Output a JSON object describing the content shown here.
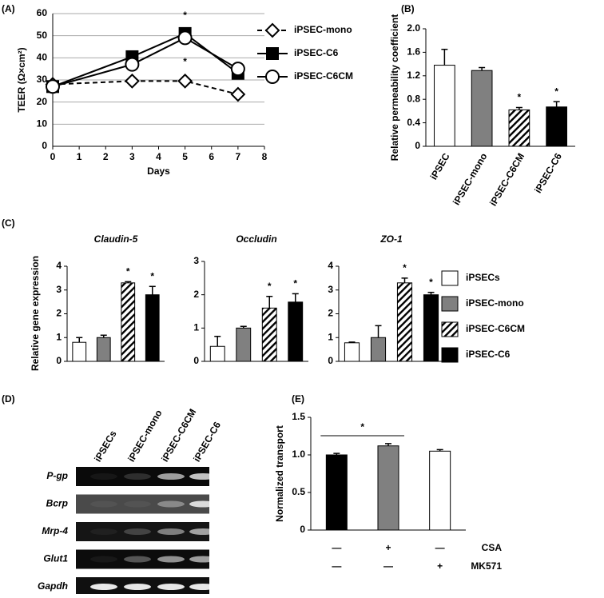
{
  "chart_data": [
    {
      "type": "line",
      "panel": "(A)",
      "ylabel": "TEER (Ω×cm²)",
      "xlabel": "Days",
      "x": [
        0,
        3,
        5,
        7
      ],
      "xlim": [
        0,
        8
      ],
      "xticks": [
        0,
        1,
        2,
        3,
        4,
        5,
        6,
        7,
        8
      ],
      "ylim": [
        0,
        60
      ],
      "yticks": [
        0,
        10,
        20,
        30,
        40,
        50,
        60
      ],
      "grid": true,
      "series": [
        {
          "name": "iPSEC-mono",
          "color": "#000000",
          "marker": "diamond",
          "dashed": true,
          "values": [
            28,
            29.5,
            29.5,
            23.5
          ]
        },
        {
          "name": "iPSEC-C6",
          "color": "#000000",
          "marker": "square",
          "dashed": false,
          "values": [
            27,
            40.5,
            51,
            33
          ]
        },
        {
          "name": "iPSEC-C6CM",
          "color": "#000000",
          "marker": "circle",
          "dashed": false,
          "values": [
            27,
            37,
            49,
            35
          ]
        }
      ],
      "annotations": [
        {
          "text": "*",
          "x": 5,
          "y": 59
        },
        {
          "text": "*",
          "x": 5,
          "y": 38
        }
      ]
    },
    {
      "type": "bar",
      "panel": "(B)",
      "ylabel": "Relative permeability coefficient",
      "categories": [
        "iPSEC",
        "iPSEC-mono",
        "iPSEC-C6CM",
        "iPSEC-C6"
      ],
      "values": [
        1.38,
        1.29,
        0.62,
        0.67
      ],
      "errors": [
        0.27,
        0.05,
        0.04,
        0.09
      ],
      "fills": [
        "#ffffff",
        "#808080",
        "hatched",
        "#000000"
      ],
      "ylim": [
        0,
        2
      ],
      "yticks": [
        0,
        0.4,
        0.8,
        1.2,
        1.6,
        {
          "value": 2,
          "label": "2.0"
        }
      ],
      "significant": [
        false,
        false,
        true,
        true
      ],
      "sig_label": "*"
    },
    {
      "type": "bar",
      "panel": "(C)",
      "title": "Claudin-5",
      "ylabel": "Relative gene expression",
      "values": [
        0.8,
        1.0,
        3.3,
        2.8
      ],
      "errors": [
        0.2,
        0.1,
        0.05,
        0.35
      ],
      "fills": [
        "#ffffff",
        "#808080",
        "hatched",
        "#000000"
      ],
      "legend": [
        "iPSECs",
        "iPSEC-mono",
        "iPSEC-C6CM",
        "iPSEC-C6"
      ],
      "ylim": [
        0,
        4
      ],
      "yticks": [
        0,
        1,
        2,
        3,
        4
      ],
      "significant": [
        false,
        false,
        true,
        true
      ],
      "sig_label": "*"
    },
    {
      "type": "bar",
      "title": "Occludin",
      "values": [
        0.45,
        1.0,
        1.6,
        1.78
      ],
      "errors": [
        0.3,
        0.05,
        0.35,
        0.25
      ],
      "fills": [
        "#ffffff",
        "#808080",
        "hatched",
        "#000000"
      ],
      "ylim": [
        0,
        3
      ],
      "yticks": [
        0,
        1,
        2,
        3
      ],
      "significant": [
        false,
        false,
        true,
        true
      ],
      "sig_label": "*"
    },
    {
      "type": "bar",
      "title": "ZO-1",
      "values": [
        0.78,
        1.0,
        3.3,
        2.8
      ],
      "errors": [
        0.03,
        0.5,
        0.2,
        0.1
      ],
      "fills": [
        "#ffffff",
        "#808080",
        "hatched",
        "#000000"
      ],
      "ylim": [
        0,
        4
      ],
      "yticks": [
        0,
        1,
        2,
        3,
        4
      ],
      "significant": [
        false,
        false,
        true,
        true
      ],
      "sig_label": "*"
    },
    {
      "type": "bar",
      "panel": "(E)",
      "ylabel": "Normalized transport",
      "values": [
        1.0,
        1.12,
        1.05
      ],
      "errors": [
        0.02,
        0.03,
        0.02
      ],
      "fills": [
        "#000000",
        "#808080",
        "#ffffff"
      ],
      "ylim": [
        0,
        1.5
      ],
      "yticks": [
        0,
        0.5,
        {
          "value": 1,
          "label": "1.0"
        },
        1.5
      ],
      "bracket": {
        "from": 0,
        "to": 1,
        "text": "*"
      },
      "conditions": [
        {
          "name": "CSA",
          "marks": [
            "—",
            "+",
            "—"
          ]
        },
        {
          "name": "MK571",
          "marks": [
            "—",
            "—",
            "+"
          ]
        }
      ]
    }
  ],
  "gel": {
    "panel": "(D)",
    "columns": [
      "iPSECs",
      "iPSEC-mono",
      "iPSEC-C6CM",
      "iPSEC-C6"
    ],
    "rows": [
      "P-gp",
      "Bcrp",
      "Mrp-4",
      "Glut1",
      "Gapdh"
    ]
  }
}
